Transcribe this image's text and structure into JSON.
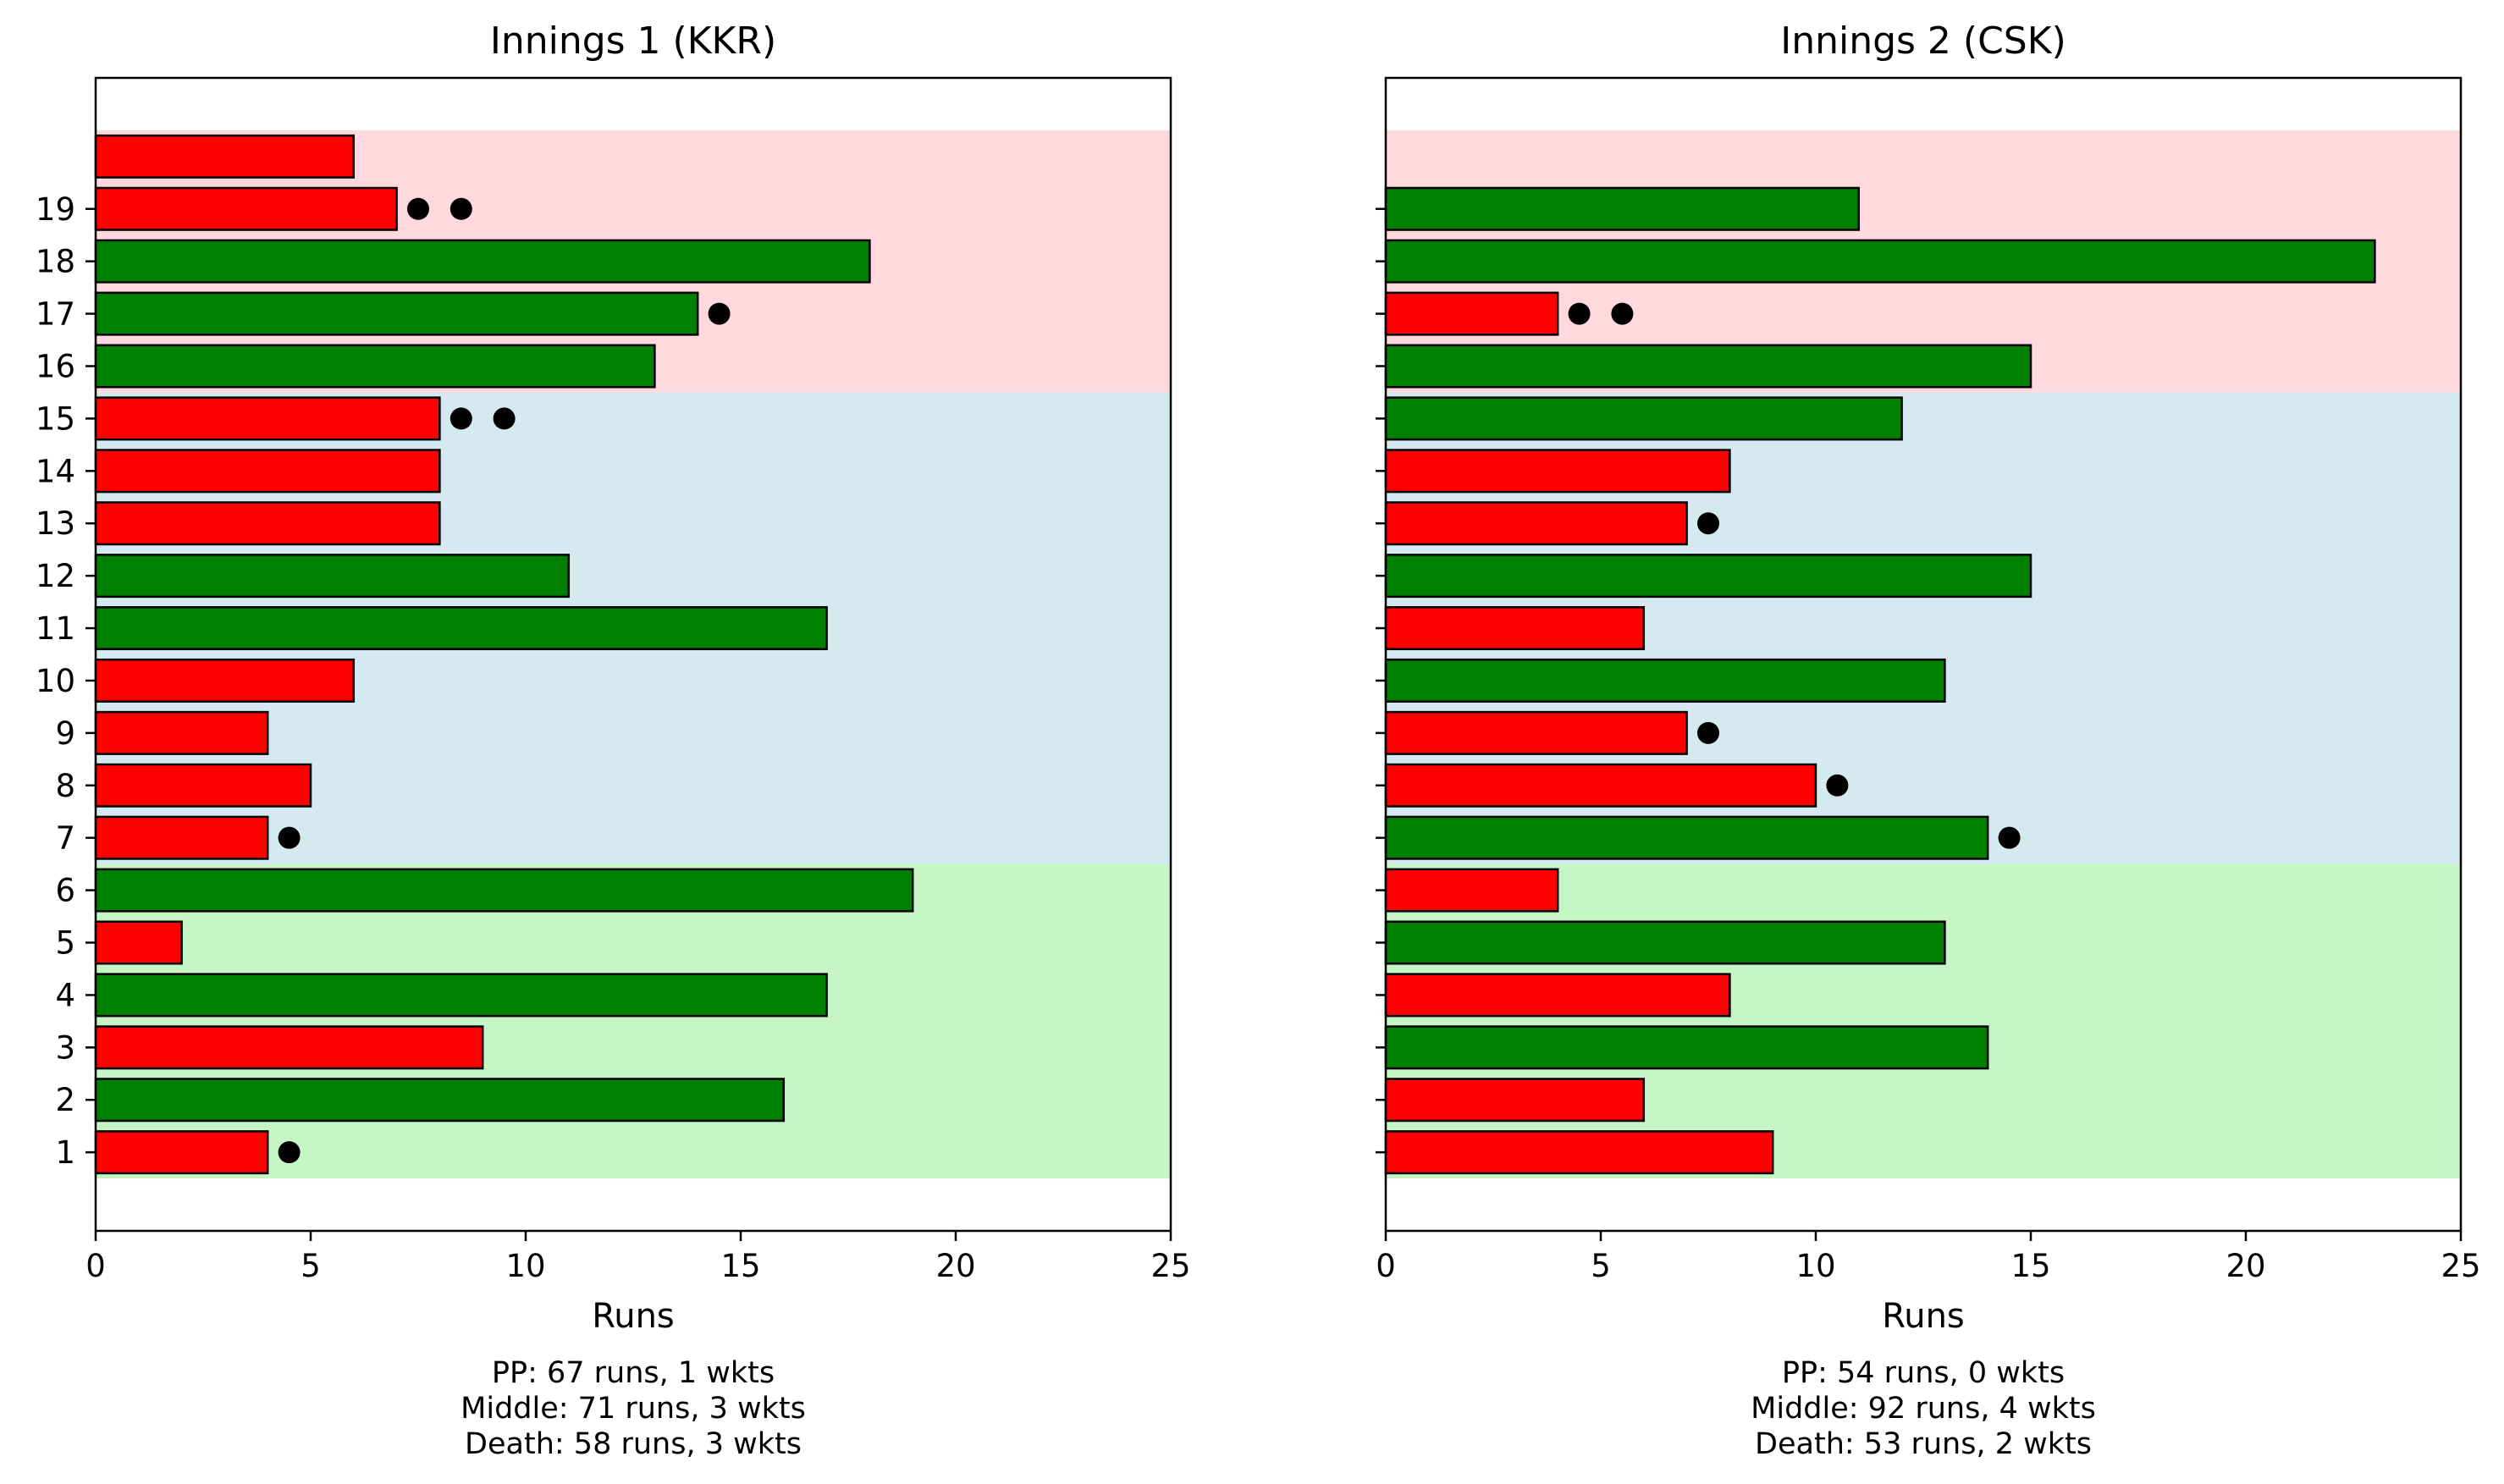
{
  "colors": {
    "bar_positive": "#008000",
    "bar_negative": "#ff0000",
    "bar_edge": "#000000",
    "powerplay_band": "#c6f5c6",
    "middle_band": "#d4eaf0",
    "death_band": "#ffd9de",
    "wicket_marker": "#000000"
  },
  "chart_data": [
    {
      "type": "bar",
      "orientation": "horizontal",
      "title": "Innings 1 (KKR)",
      "xlabel": "Runs",
      "ylabel": "",
      "xlim": [
        0,
        25
      ],
      "x_ticks": [
        0,
        5,
        10,
        15,
        20,
        25
      ],
      "y_ticks": [
        1,
        2,
        3,
        4,
        5,
        6,
        7,
        8,
        9,
        10,
        11,
        12,
        13,
        14,
        15,
        16,
        17,
        18,
        19
      ],
      "y_tick_labels_visible": true,
      "grid": false,
      "legend": "none",
      "overs": [
        1,
        2,
        3,
        4,
        5,
        6,
        7,
        8,
        9,
        10,
        11,
        12,
        13,
        14,
        15,
        16,
        17,
        18,
        19,
        20
      ],
      "runs": [
        4,
        16,
        9,
        17,
        2,
        19,
        4,
        5,
        4,
        6,
        17,
        11,
        8,
        8,
        8,
        13,
        14,
        18,
        7,
        6
      ],
      "bar_color": [
        "red",
        "green",
        "red",
        "green",
        "red",
        "green",
        "red",
        "red",
        "red",
        "red",
        "green",
        "green",
        "red",
        "red",
        "red",
        "green",
        "green",
        "green",
        "red",
        "red"
      ],
      "wickets": [
        1,
        0,
        0,
        0,
        0,
        0,
        1,
        0,
        0,
        0,
        0,
        0,
        0,
        0,
        2,
        0,
        1,
        0,
        2,
        0
      ],
      "phases": [
        {
          "name": "PP",
          "from_over": 1,
          "to_over": 6,
          "color": "powerplay_band"
        },
        {
          "name": "Middle",
          "from_over": 7,
          "to_over": 15,
          "color": "middle_band"
        },
        {
          "name": "Death",
          "from_over": 16,
          "to_over": 20,
          "color": "death_band"
        }
      ],
      "summary": [
        "PP: 67 runs, 1 wkts",
        "Middle: 71 runs, 3 wkts",
        "Death: 58 runs, 3 wkts"
      ]
    },
    {
      "type": "bar",
      "orientation": "horizontal",
      "title": "Innings 2 (CSK)",
      "xlabel": "Runs",
      "ylabel": "",
      "xlim": [
        0,
        25
      ],
      "x_ticks": [
        0,
        5,
        10,
        15,
        20,
        25
      ],
      "y_ticks": [
        1,
        2,
        3,
        4,
        5,
        6,
        7,
        8,
        9,
        10,
        11,
        12,
        13,
        14,
        15,
        16,
        17,
        18,
        19
      ],
      "y_tick_labels_visible": false,
      "grid": false,
      "legend": "none",
      "overs": [
        1,
        2,
        3,
        4,
        5,
        6,
        7,
        8,
        9,
        10,
        11,
        12,
        13,
        14,
        15,
        16,
        17,
        18,
        19
      ],
      "runs": [
        9,
        6,
        14,
        8,
        13,
        4,
        14,
        10,
        7,
        13,
        6,
        15,
        7,
        8,
        12,
        15,
        4,
        23,
        11
      ],
      "bar_color": [
        "red",
        "red",
        "green",
        "red",
        "green",
        "red",
        "green",
        "red",
        "red",
        "green",
        "red",
        "green",
        "red",
        "red",
        "green",
        "green",
        "red",
        "green",
        "green"
      ],
      "wickets": [
        0,
        0,
        0,
        0,
        0,
        0,
        1,
        1,
        1,
        0,
        0,
        0,
        1,
        0,
        0,
        0,
        2,
        0,
        0
      ],
      "phases": [
        {
          "name": "PP",
          "from_over": 1,
          "to_over": 6,
          "color": "powerplay_band"
        },
        {
          "name": "Middle",
          "from_over": 7,
          "to_over": 15,
          "color": "middle_band"
        },
        {
          "name": "Death",
          "from_over": 16,
          "to_over": 20,
          "color": "death_band"
        }
      ],
      "summary": [
        "PP: 54 runs, 0 wkts",
        "Middle: 92 runs, 4 wkts",
        "Death: 53 runs, 2 wkts"
      ]
    }
  ]
}
